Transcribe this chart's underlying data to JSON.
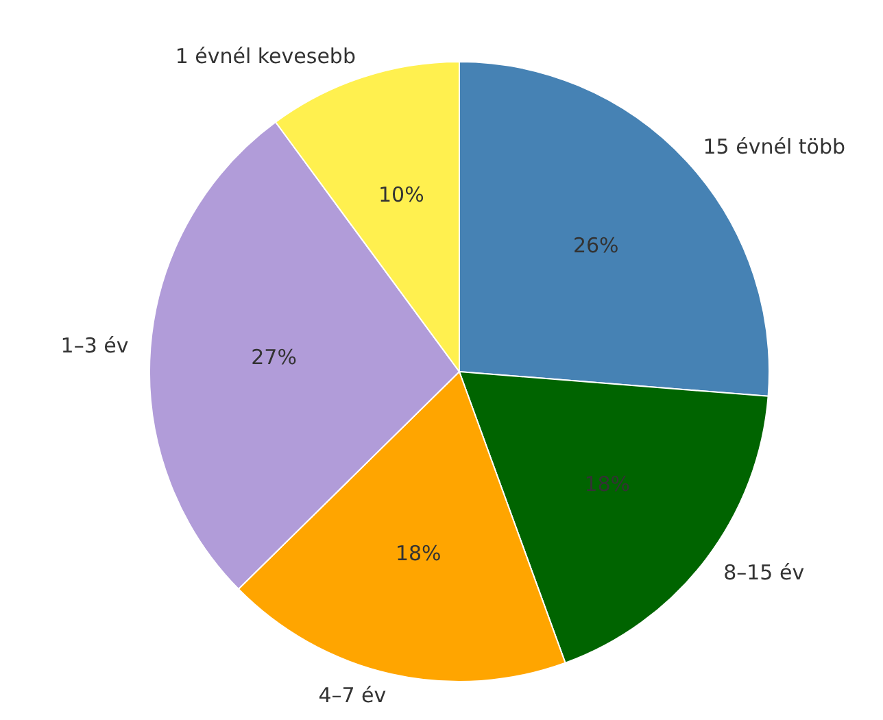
{
  "chart_data": {
    "type": "pie",
    "categories": [
      "15 évnél több",
      "8–15 év",
      "4–7 év",
      "1–3 év",
      "1 évnél kevesebb"
    ],
    "values": [
      26,
      18,
      18,
      27,
      10
    ],
    "value_labels": [
      "26%",
      "18%",
      "18%",
      "27%",
      "10%"
    ],
    "colors": [
      "#4682b4",
      "#006400",
      "#ffa500",
      "#b19cd9",
      "#fff04f"
    ],
    "legend": false
  }
}
